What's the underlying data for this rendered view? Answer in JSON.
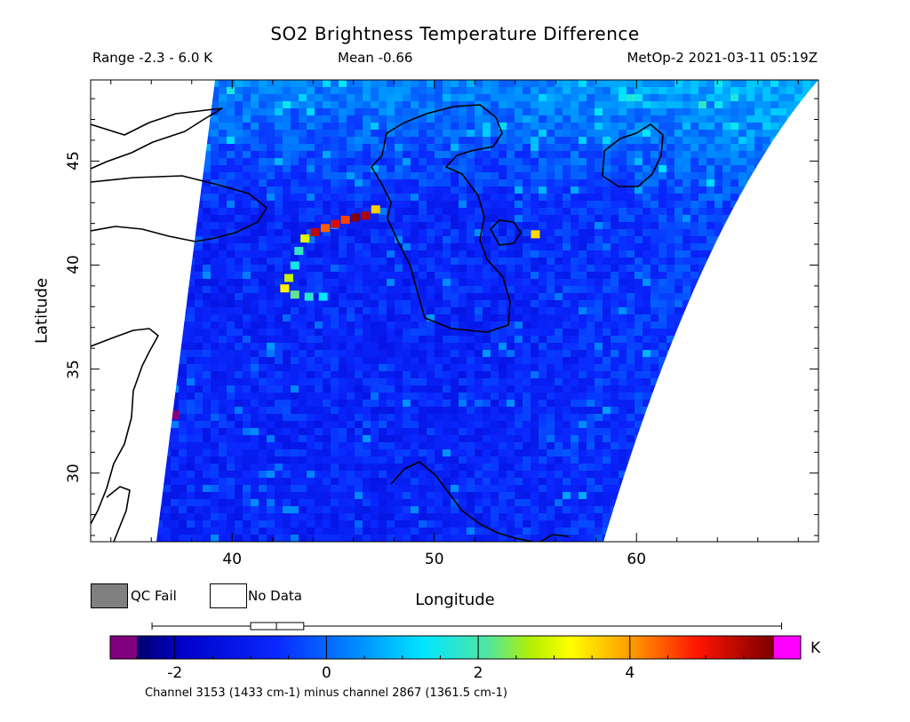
{
  "header": {
    "title": "SO2 Brightness Temperature Difference",
    "range_text": "Range -2.3 - 6.0 K",
    "mean_text": "Mean -0.66",
    "satellite_time": "MetOp-2 2021-03-11 05:19Z"
  },
  "axes": {
    "y_label": "Latitude",
    "x_label": "Longitude",
    "y_ticks": [
      "45",
      "40",
      "35",
      "30"
    ],
    "x_ticks": [
      "40",
      "50",
      "60"
    ],
    "lon_range": [
      33,
      69
    ],
    "lat_range": [
      26.7,
      48.9
    ]
  },
  "legend": {
    "qc_fail_label": "QC Fail",
    "no_data_label": "No Data",
    "qc_fail_color": "#808080",
    "no_data_color": "#ffffff"
  },
  "colorbar": {
    "ticks": [
      "-2",
      "0",
      "2",
      "4"
    ],
    "tick_values": [
      -2,
      0,
      2,
      4
    ],
    "min": -2.5,
    "max": 5.9,
    "unit": "K",
    "note": "Channel 3153 (1433 cm-1) minus channel 2867 (1361.5 cm-1)",
    "under_color": "#800080",
    "over_color": "#ff00ff",
    "boxplot": {
      "min": -2.3,
      "q1": -1.0,
      "median": -0.66,
      "q3": -0.3,
      "max": 6.0
    }
  },
  "map": {
    "background_level": -0.8,
    "plume": [
      {
        "lon": 47.1,
        "lat": 42.7,
        "value": 3.6
      },
      {
        "lon": 46.6,
        "lat": 42.4,
        "value": 5.5
      },
      {
        "lon": 46.1,
        "lat": 42.3,
        "value": 5.8
      },
      {
        "lon": 45.6,
        "lat": 42.2,
        "value": 4.6
      },
      {
        "lon": 45.1,
        "lat": 42.0,
        "value": 5.2
      },
      {
        "lon": 44.6,
        "lat": 41.8,
        "value": 4.4
      },
      {
        "lon": 44.1,
        "lat": 41.6,
        "value": 5.4
      },
      {
        "lon": 43.6,
        "lat": 41.3,
        "value": 3.0
      },
      {
        "lon": 43.3,
        "lat": 40.7,
        "value": 1.8
      },
      {
        "lon": 43.1,
        "lat": 40.0,
        "value": 1.5
      },
      {
        "lon": 42.8,
        "lat": 39.4,
        "value": 2.8
      },
      {
        "lon": 42.6,
        "lat": 38.9,
        "value": 3.3
      },
      {
        "lon": 43.1,
        "lat": 38.6,
        "value": 2.2
      },
      {
        "lon": 43.8,
        "lat": 38.5,
        "value": 1.7
      },
      {
        "lon": 44.5,
        "lat": 38.5,
        "value": 1.3
      },
      {
        "lon": 55.0,
        "lat": 41.5,
        "value": 3.5
      }
    ],
    "qc_fail_pixel": {
      "lon": 37.0,
      "lat": 32.8
    }
  }
}
